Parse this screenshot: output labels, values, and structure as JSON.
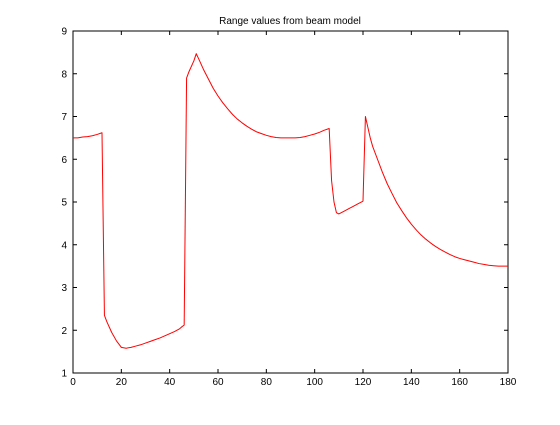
{
  "chart_data": {
    "type": "line",
    "title": "Range values from beam model",
    "xlabel": "",
    "ylabel": "",
    "xlim": [
      0,
      180
    ],
    "ylim": [
      1,
      9
    ],
    "xticks": [
      0,
      20,
      40,
      60,
      80,
      100,
      120,
      140,
      160,
      180
    ],
    "yticks": [
      1,
      2,
      3,
      4,
      5,
      6,
      7,
      8,
      9
    ],
    "grid": false,
    "series": [
      {
        "color": "#ff0000",
        "x": [
          0,
          2,
          4,
          6,
          8,
          10,
          12,
          13,
          14,
          16,
          18,
          20,
          22,
          24,
          26,
          28,
          30,
          32,
          34,
          36,
          38,
          40,
          42,
          44,
          45,
          46,
          47,
          48,
          50,
          51,
          52,
          54,
          56,
          58,
          60,
          62,
          64,
          66,
          68,
          70,
          72,
          74,
          76,
          78,
          80,
          82,
          84,
          86,
          88,
          90,
          92,
          94,
          96,
          98,
          100,
          102,
          104,
          106,
          107,
          108,
          109,
          110,
          112,
          114,
          116,
          118,
          120,
          121,
          122,
          123,
          124,
          126,
          128,
          130,
          132,
          134,
          136,
          138,
          140,
          142,
          144,
          146,
          148,
          150,
          152,
          154,
          156,
          158,
          160,
          162,
          164,
          166,
          168,
          170,
          172,
          174,
          176,
          178,
          180
        ],
        "y": [
          6.5,
          6.5,
          6.52,
          6.53,
          6.55,
          6.58,
          6.62,
          2.35,
          2.2,
          1.95,
          1.75,
          1.6,
          1.58,
          1.6,
          1.63,
          1.66,
          1.7,
          1.74,
          1.78,
          1.82,
          1.87,
          1.92,
          1.97,
          2.03,
          2.08,
          2.12,
          7.9,
          8.05,
          8.3,
          8.47,
          8.35,
          8.1,
          7.88,
          7.66,
          7.48,
          7.32,
          7.18,
          7.05,
          6.94,
          6.85,
          6.77,
          6.7,
          6.64,
          6.6,
          6.56,
          6.53,
          6.51,
          6.5,
          6.5,
          6.5,
          6.5,
          6.51,
          6.53,
          6.56,
          6.59,
          6.63,
          6.68,
          6.72,
          5.5,
          5.0,
          4.75,
          4.72,
          4.78,
          4.84,
          4.9,
          4.96,
          5.02,
          7.0,
          6.75,
          6.5,
          6.3,
          6.0,
          5.7,
          5.43,
          5.2,
          4.98,
          4.8,
          4.63,
          4.48,
          4.35,
          4.23,
          4.13,
          4.04,
          3.96,
          3.89,
          3.83,
          3.77,
          3.72,
          3.68,
          3.65,
          3.62,
          3.59,
          3.56,
          3.54,
          3.52,
          3.51,
          3.5,
          3.5,
          3.5
        ]
      }
    ]
  }
}
